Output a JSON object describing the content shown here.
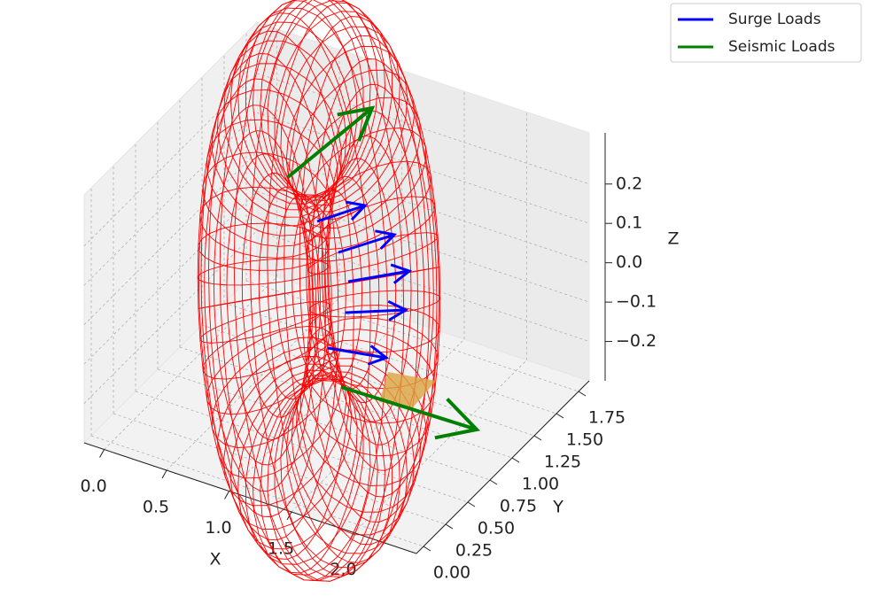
{
  "chart_data": {
    "type": "wireframe3d",
    "xlabel": "X",
    "ylabel": "Y",
    "zlabel": "Z",
    "xlim": [
      -0.16,
      2.5
    ],
    "ylim": [
      -0.08,
      1.87
    ],
    "zlim": [
      -0.3,
      0.33
    ],
    "xticks": [
      {
        "value": 0,
        "label": "0.0"
      },
      {
        "value": 0.5,
        "label": "0.5"
      },
      {
        "value": 1,
        "label": "1.0"
      },
      {
        "value": 1.5,
        "label": "1.5"
      },
      {
        "value": 2,
        "label": "2.0"
      }
    ],
    "yticks": [
      {
        "value": 0,
        "label": "0.00"
      },
      0.25,
      {
        "value": 0.5,
        "label": "0.50"
      },
      0.75,
      {
        "value": 1,
        "label": "1.00"
      },
      1.25,
      {
        "value": 1.5,
        "label": "1.50"
      },
      1.75
    ],
    "zticks": [
      {
        "value": -0.2,
        "label": "−0.2"
      },
      {
        "value": -0.1,
        "label": "−0.1"
      },
      {
        "value": 0,
        "label": "0.0"
      },
      0.1,
      0.2
    ],
    "grid": true,
    "surface_color": "#ff0000",
    "patch_color": "#d9a441",
    "series": [
      {
        "name": "Surge Loads",
        "color": "#0000ff"
      },
      {
        "name": "Seismic Loads",
        "color": "#008000"
      }
    ],
    "legend": "upper right"
  }
}
